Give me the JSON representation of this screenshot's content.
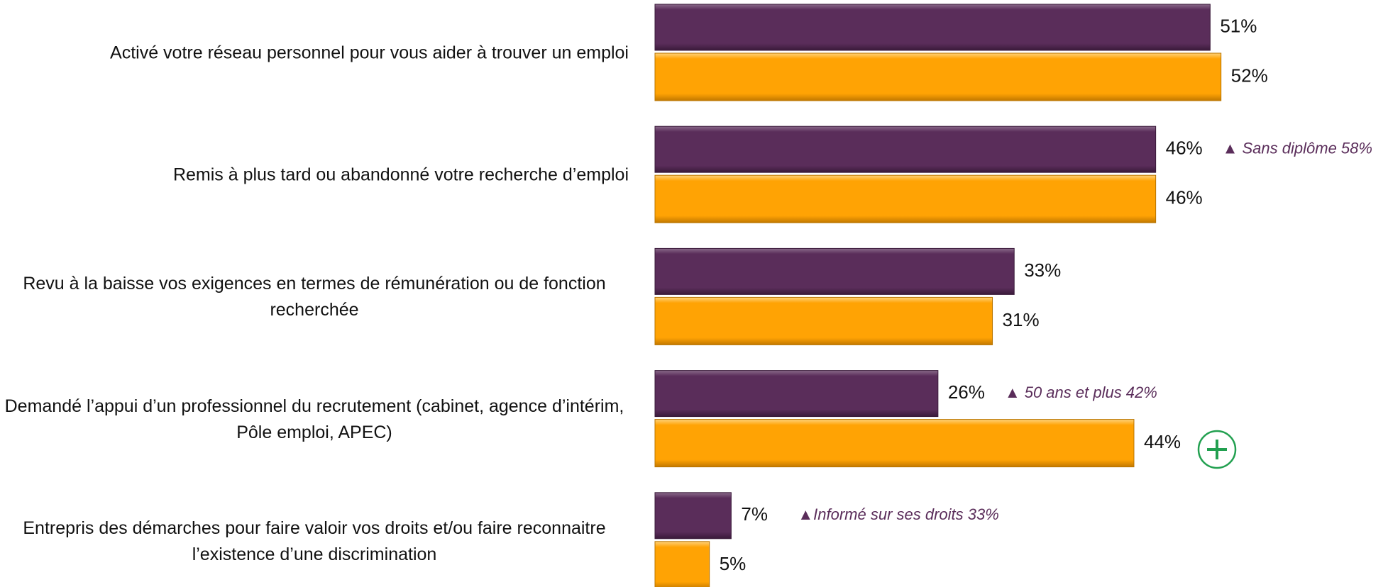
{
  "chart_data": {
    "type": "bar",
    "orientation": "horizontal",
    "categories": [
      "Activé votre réseau personnel pour vous aider à trouver un emploi",
      "Remis à plus tard ou abandonné votre recherche d’emploi",
      "Revu à la baisse vos exigences en termes de rémunération ou de fonction recherchée",
      "Demandé l’appui d’un professionnel du recrutement (cabinet, agence d’intérim, Pôle emploi, APEC)",
      "Entrepris des démarches pour faire valoir vos droits et/ou faire reconnaitre l’existence d’une discrimination"
    ],
    "series": [
      {
        "color": "#5a2d5a",
        "values": [
          51,
          46,
          33,
          26,
          7
        ],
        "value_labels": [
          "51%",
          "46%",
          "33%",
          "26%",
          "7%"
        ]
      },
      {
        "color": "#ffa304",
        "values": [
          52,
          46,
          31,
          44,
          5
        ],
        "value_labels": [
          "52%",
          "46%",
          "31%",
          "44%",
          "5%"
        ]
      }
    ],
    "annotations": [
      null,
      "▲ Sans diplôme 58%",
      null,
      "▲ 50 ans et plus 42%",
      "▲Informé sur ses droits 33%"
    ],
    "xlim": [
      0,
      100
    ]
  }
}
